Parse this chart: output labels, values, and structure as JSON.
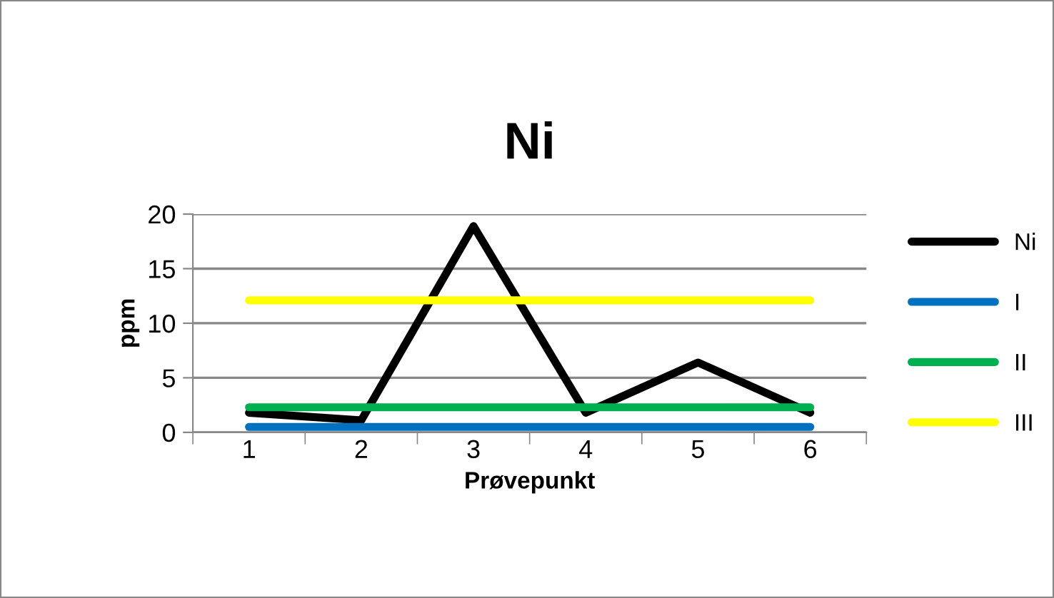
{
  "chart_data": {
    "type": "line",
    "title": "Ni",
    "xlabel": "Prøvepunkt",
    "ylabel": "ppm",
    "categories": [
      "1",
      "2",
      "3",
      "4",
      "5",
      "6"
    ],
    "series": [
      {
        "name": "Ni",
        "color": "#000000",
        "values": [
          1.8,
          1.1,
          18.9,
          1.8,
          6.4,
          1.8
        ]
      },
      {
        "name": "I",
        "color": "#0070c0",
        "values": [
          0.5,
          0.5,
          0.5,
          0.5,
          0.5,
          0.5
        ]
      },
      {
        "name": "II",
        "color": "#00b050",
        "values": [
          2.3,
          2.3,
          2.3,
          2.3,
          2.3,
          2.3
        ]
      },
      {
        "name": "III",
        "color": "#ffff00",
        "values": [
          12.1,
          12.1,
          12.1,
          12.1,
          12.1,
          12.1
        ]
      }
    ],
    "ylim": [
      0,
      20
    ],
    "yticks": [
      0,
      5,
      10,
      15,
      20
    ],
    "grid": "y",
    "legend": "right",
    "marker": "none",
    "line_style": "solid"
  }
}
